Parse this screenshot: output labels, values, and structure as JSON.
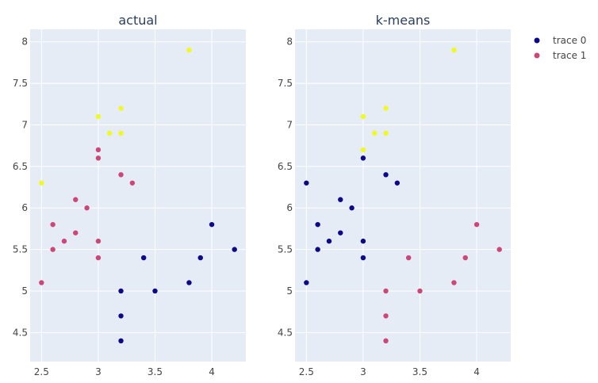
{
  "chart_data": {
    "type": "scatter",
    "layout": "two side-by-side subplots sharing the legend",
    "colors": {
      "plot_bg": "#e5ecf6",
      "cluster_0": "#0d0887",
      "cluster_1": "#cc4778",
      "cluster_2": "#f0f921"
    },
    "legend": {
      "placement": "top-right",
      "entries": [
        {
          "name": "trace 0",
          "color": "#0d0887"
        },
        {
          "name": "trace 1",
          "color": "#cc4778"
        }
      ]
    },
    "xlim": [
      2.4,
      4.3
    ],
    "ylim": [
      4.15,
      8.15
    ],
    "xticks": [
      "2.5",
      "3",
      "3.5",
      "4"
    ],
    "yticks": [
      "4.5",
      "5",
      "5.5",
      "6",
      "6.5",
      "7",
      "7.5",
      "8"
    ],
    "grid": true,
    "subplots": [
      {
        "title": "actual",
        "points": [
          {
            "x": 2.5,
            "y": 6.3,
            "c": 2
          },
          {
            "x": 3.0,
            "y": 7.1,
            "c": 2
          },
          {
            "x": 3.1,
            "y": 6.9,
            "c": 2
          },
          {
            "x": 3.2,
            "y": 7.2,
            "c": 2
          },
          {
            "x": 3.2,
            "y": 6.9,
            "c": 2
          },
          {
            "x": 3.8,
            "y": 7.9,
            "c": 2
          },
          {
            "x": 3.0,
            "y": 6.7,
            "c": 1
          },
          {
            "x": 3.0,
            "y": 6.6,
            "c": 1
          },
          {
            "x": 3.2,
            "y": 6.4,
            "c": 1
          },
          {
            "x": 3.3,
            "y": 6.3,
            "c": 1
          },
          {
            "x": 2.8,
            "y": 6.1,
            "c": 1
          },
          {
            "x": 2.9,
            "y": 6.0,
            "c": 1
          },
          {
            "x": 2.6,
            "y": 5.8,
            "c": 1
          },
          {
            "x": 2.8,
            "y": 5.7,
            "c": 1
          },
          {
            "x": 2.7,
            "y": 5.6,
            "c": 1
          },
          {
            "x": 3.0,
            "y": 5.6,
            "c": 1
          },
          {
            "x": 2.6,
            "y": 5.5,
            "c": 1
          },
          {
            "x": 3.0,
            "y": 5.4,
            "c": 1
          },
          {
            "x": 2.5,
            "y": 5.1,
            "c": 1
          },
          {
            "x": 4.0,
            "y": 5.8,
            "c": 0
          },
          {
            "x": 4.2,
            "y": 5.5,
            "c": 0
          },
          {
            "x": 3.4,
            "y": 5.4,
            "c": 0
          },
          {
            "x": 3.9,
            "y": 5.4,
            "c": 0
          },
          {
            "x": 3.8,
            "y": 5.1,
            "c": 0
          },
          {
            "x": 3.2,
            "y": 5.0,
            "c": 0
          },
          {
            "x": 3.5,
            "y": 5.0,
            "c": 0
          },
          {
            "x": 3.2,
            "y": 4.7,
            "c": 0
          },
          {
            "x": 3.2,
            "y": 4.4,
            "c": 0
          }
        ]
      },
      {
        "title": "k-means",
        "points": [
          {
            "x": 3.8,
            "y": 7.9,
            "c": 2
          },
          {
            "x": 3.2,
            "y": 7.2,
            "c": 2
          },
          {
            "x": 3.0,
            "y": 7.1,
            "c": 2
          },
          {
            "x": 3.1,
            "y": 6.9,
            "c": 2
          },
          {
            "x": 3.2,
            "y": 6.9,
            "c": 2
          },
          {
            "x": 3.0,
            "y": 6.7,
            "c": 2
          },
          {
            "x": 3.0,
            "y": 6.6,
            "c": 0
          },
          {
            "x": 3.2,
            "y": 6.4,
            "c": 0
          },
          {
            "x": 2.5,
            "y": 6.3,
            "c": 0
          },
          {
            "x": 3.3,
            "y": 6.3,
            "c": 0
          },
          {
            "x": 2.8,
            "y": 6.1,
            "c": 0
          },
          {
            "x": 2.9,
            "y": 6.0,
            "c": 0
          },
          {
            "x": 2.6,
            "y": 5.8,
            "c": 0
          },
          {
            "x": 2.8,
            "y": 5.7,
            "c": 0
          },
          {
            "x": 2.7,
            "y": 5.6,
            "c": 0
          },
          {
            "x": 3.0,
            "y": 5.6,
            "c": 0
          },
          {
            "x": 2.6,
            "y": 5.5,
            "c": 0
          },
          {
            "x": 3.0,
            "y": 5.4,
            "c": 0
          },
          {
            "x": 2.5,
            "y": 5.1,
            "c": 0
          },
          {
            "x": 4.0,
            "y": 5.8,
            "c": 1
          },
          {
            "x": 4.2,
            "y": 5.5,
            "c": 1
          },
          {
            "x": 3.4,
            "y": 5.4,
            "c": 1
          },
          {
            "x": 3.9,
            "y": 5.4,
            "c": 1
          },
          {
            "x": 3.8,
            "y": 5.1,
            "c": 1
          },
          {
            "x": 3.5,
            "y": 5.0,
            "c": 1
          },
          {
            "x": 3.2,
            "y": 5.0,
            "c": 1
          },
          {
            "x": 3.2,
            "y": 4.7,
            "c": 1
          },
          {
            "x": 3.2,
            "y": 4.4,
            "c": 1
          }
        ]
      }
    ]
  }
}
